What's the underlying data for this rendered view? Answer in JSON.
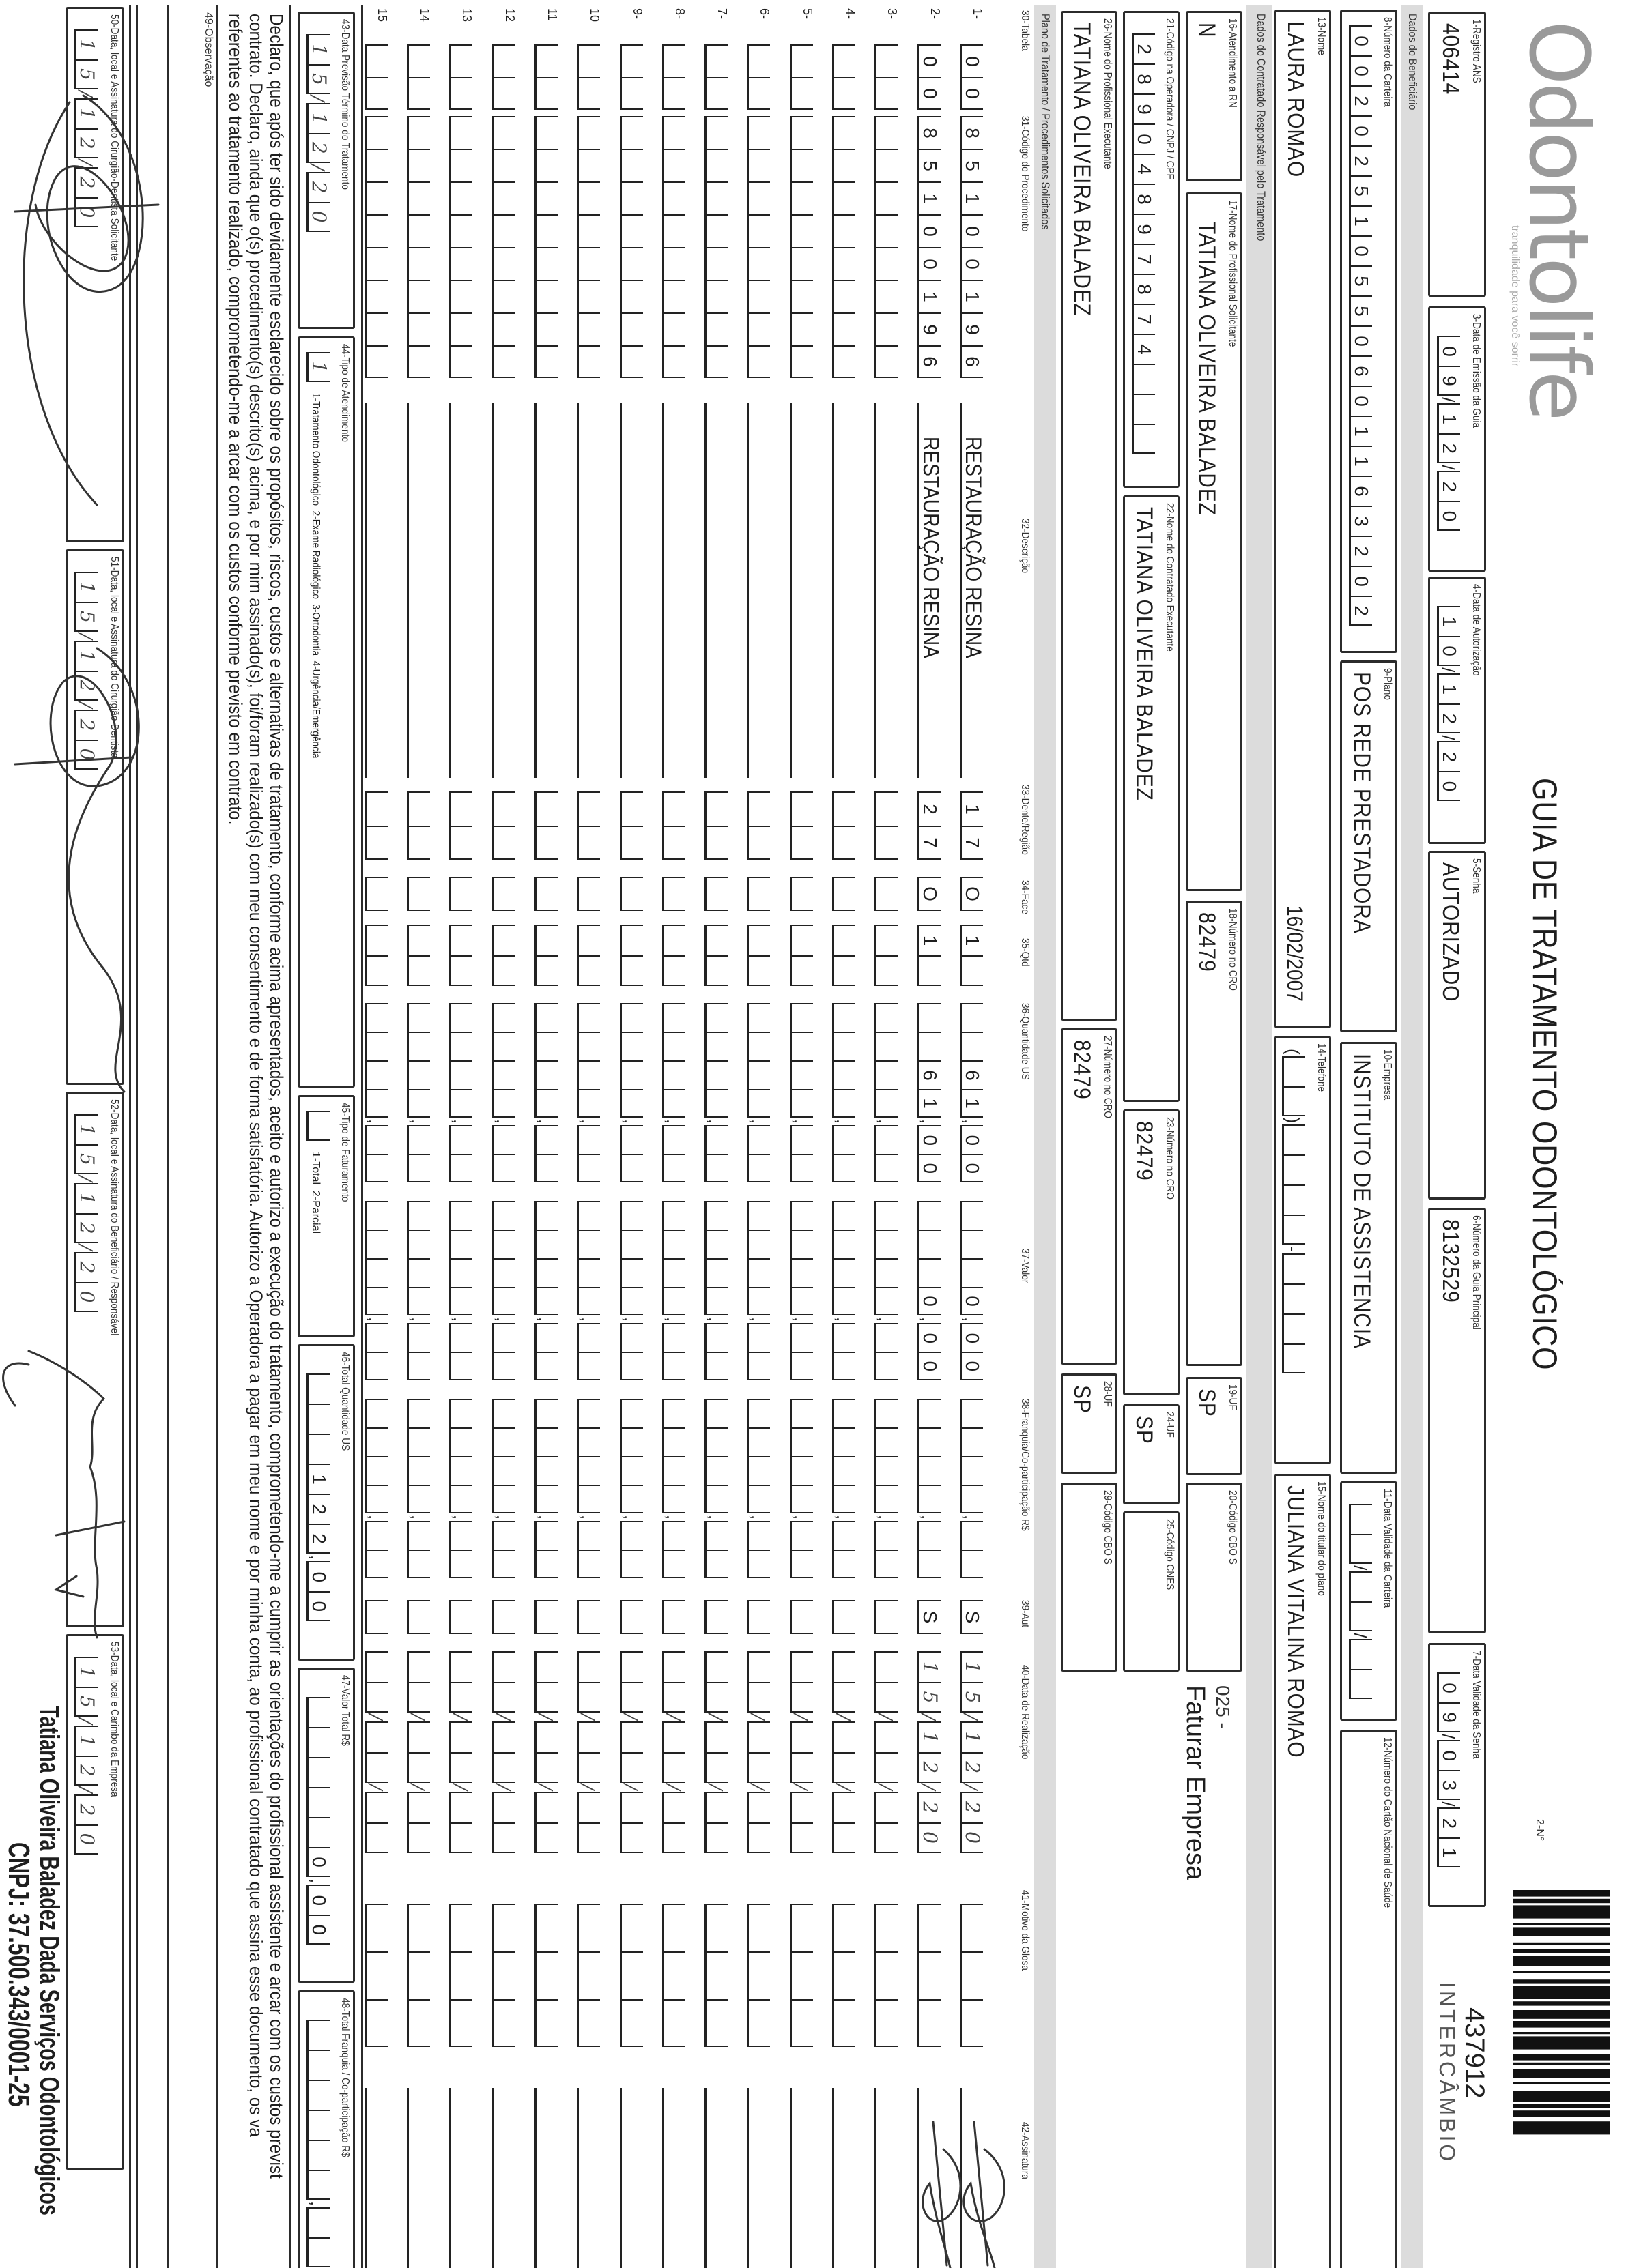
{
  "header": {
    "logo": "Odontolife",
    "logo_tagline": "tranquilidade para você sorrir",
    "title": "GUIA DE TRATAMENTO ODONTOLÓGICO",
    "guide_no_label": "2-N°",
    "guide_no": "437912",
    "guide_type": "INTERCÂMBIO"
  },
  "sections": {
    "beneficiario": "Dados do Beneficiário",
    "contratado": "Dados do Contratado Responsável pelo Tratamento",
    "plano": "Plano de Tratamento / Procedimentos Solicitados"
  },
  "fields": {
    "f1": {
      "label": "1-Registro ANS",
      "value": "406414"
    },
    "f3": {
      "label": "3-Data de Emissão da Guia",
      "value": "09/12/20"
    },
    "f4": {
      "label": "4-Data de Autorização",
      "value": "10/12/20"
    },
    "f5": {
      "label": "5-Senha",
      "value": "AUTORIZADO"
    },
    "f6": {
      "label": "6-Número da Guia Principal",
      "value": "8132529"
    },
    "f7": {
      "label": "7-Data Validade da Senha",
      "value": "09/03/21"
    },
    "f8": {
      "label": "8-Número da Carteira",
      "value": "00202510550601163202"
    },
    "f9": {
      "label": "9-Plano",
      "value": "POS REDE PRESTADORA"
    },
    "f10": {
      "label": "10-Empresa",
      "value": "INSTITUTO DE ASSISTENCIA"
    },
    "f11": {
      "label": "11-Data Validade da Carteira",
      "value": ""
    },
    "f12": {
      "label": "12-Número do Cartão Nacional de Saúde",
      "value": ""
    },
    "f13": {
      "label": "13-Nome",
      "value": "LAURA ROMAO",
      "birth_date": "16/02/2007"
    },
    "f14": {
      "label": "14-Telefone",
      "value": ""
    },
    "f15": {
      "label": "15-Nome do titular do plano",
      "value": "JULIANA VITALINA ROMAO"
    },
    "f16": {
      "label": "16-Atendimento a RN",
      "value": "N"
    },
    "f17": {
      "label": "17-Nome do Profissional Solicitante",
      "value": "TATIANA OLIVEIRA BALADEZ"
    },
    "f18": {
      "label": "18-Número no CRO",
      "value": "82479"
    },
    "f19": {
      "label": "19-UF",
      "value": "SP"
    },
    "f20": {
      "label": "20-Código CBO S",
      "value": ""
    },
    "f20_note_code": "025 -",
    "f20_note": "Faturar Empresa",
    "f21": {
      "label": "21-Código na Operadora / CNPJ / CPF",
      "value": "28904897874"
    },
    "f22": {
      "label": "22-Nome do Contratado Executante",
      "value": "TATIANA OLIVEIRA BALADEZ"
    },
    "f23": {
      "label": "23-Número no CRO",
      "value": "82479"
    },
    "f24": {
      "label": "24-UF",
      "value": "SP"
    },
    "f25": {
      "label": "25-Código CNES",
      "value": ""
    },
    "f26": {
      "label": "26-Nome do Profissional Executante",
      "value": "TATIANA OLIVEIRA BALADEZ"
    },
    "f27": {
      "label": "27-Número no CRO",
      "value": "82479"
    },
    "f28": {
      "label": "28-UF",
      "value": "SP"
    },
    "f29": {
      "label": "29-Código CBO S",
      "value": ""
    }
  },
  "table": {
    "headers": [
      "30-Tabela",
      "31-Código do Procedimento",
      "32-Descrição",
      "33-Dente/Região",
      "34-Face",
      "35-Qtd",
      "36-Quantidade US",
      "37-Valor",
      "38-Franquia/Co-participação R$",
      "39-Aut",
      "40-Data de Realização",
      "41-Motivo da Glosa",
      "42-Assinatura"
    ],
    "rows": [
      {
        "n": "1-",
        "tabela": "00",
        "codigo": "85100196",
        "descricao": "RESTAURAÇÃO RESINA",
        "dente": "17",
        "face": "O",
        "qtd": "1",
        "qtd_us": "61,00",
        "valor": "0,00",
        "franquia": "",
        "aut": "S",
        "data": "15/12/20",
        "glosa": "",
        "signed": true
      },
      {
        "n": "2-",
        "tabela": "00",
        "codigo": "85100196",
        "descricao": "RESTAURAÇÃO RESINA",
        "dente": "27",
        "face": "O",
        "qtd": "1",
        "qtd_us": "61,00",
        "valor": "0,00",
        "franquia": "",
        "aut": "S",
        "data": "15/12/20",
        "glosa": "",
        "signed": true
      },
      {
        "n": "3-"
      },
      {
        "n": "4-"
      },
      {
        "n": "5-"
      },
      {
        "n": "6-"
      },
      {
        "n": "7-"
      },
      {
        "n": "8-"
      },
      {
        "n": "9-"
      },
      {
        "n": "10"
      },
      {
        "n": "11"
      },
      {
        "n": "12"
      },
      {
        "n": "13"
      },
      {
        "n": "14"
      },
      {
        "n": "15"
      }
    ]
  },
  "summary": {
    "f43": {
      "label": "43-Data Previsão Término do Tratamento",
      "value": "15/12/20"
    },
    "f44": {
      "label": "44-Tipo de Atendimento",
      "value": "1",
      "options": "1-Tratamento Odontológico  2-Exame Radiológico  3-Ortodontia  4-Urgência/Emergência"
    },
    "f45": {
      "label": "45-Tipo de Faturamento",
      "value": "",
      "options": "1-Total  2-Parcial"
    },
    "f46": {
      "label": "46-Total Quantidade US",
      "value": "122,00"
    },
    "f47": {
      "label": "47-Valor Total R$",
      "value": "0,00"
    },
    "f48": {
      "label": "48-Total Franquia / Co-participação R$",
      "value": ""
    }
  },
  "declaration": [
    "Declaro, que após ter sido devidamente esclarecido sobre os propósitos, riscos, custos e alternativas de tratamento, conforme acima apresentados, aceito e autorizo a execução do tratamento, comprometendo-me a cumprir as orientações do profissional assistente e arcar com os custos previst",
    "contrato. Declaro, ainda que o(s) procedimento(s) descrito(s) acima, e por mim assinado(s), foi/foram realizado(s) com meu consentimento e de forma satisfatória. Autorizo a Operadora a pagar em meu nome e por minha conta, ao profissional contratado que assina esse documento, os va",
    "referentes ao tratamento realizado, comprometendo-me a arcar com os custos conforme previsto em contrato."
  ],
  "observacao": {
    "label": "49-Observação",
    "value": ""
  },
  "signatures": {
    "f50": {
      "label": "50-Data, local e Assinatura do Cirurgião-Dentista Solicitante",
      "value": "15/12/20"
    },
    "f51": {
      "label": "51-Data, local e Assinatura do Cirurgião-Dentista",
      "value": "15/12/20"
    },
    "f52": {
      "label": "52-Data, local e Assinatura do Beneficiário / Responsável",
      "value": "15/12/20"
    },
    "f53": {
      "label": "53-Data, local e Carimbo da Empresa",
      "value": "15/12/20"
    }
  },
  "stamp": {
    "name": "Tatiana Oliveira Baladez Dada Serviços Odontológicos",
    "cnpj": "CNPJ: 37.500.343/0001-25"
  }
}
